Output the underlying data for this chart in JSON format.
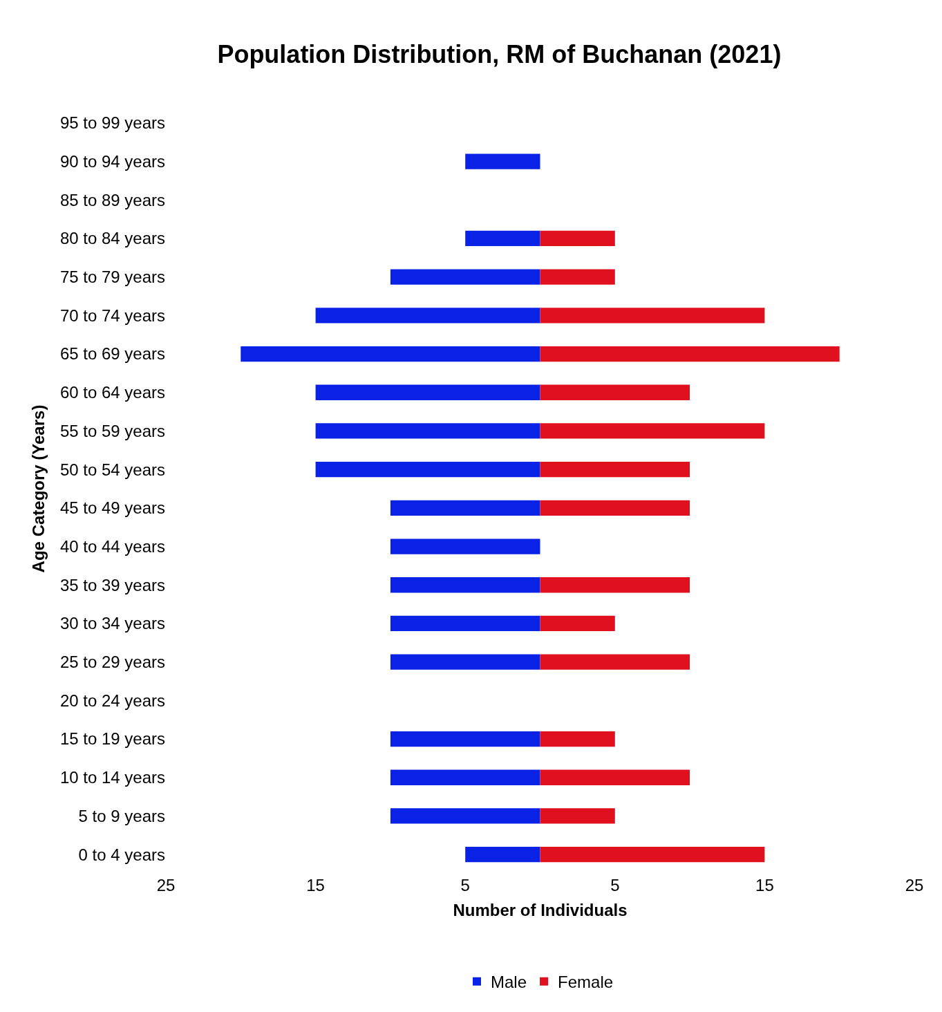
{
  "chart_data": {
    "type": "bar",
    "orientation": "horizontal",
    "title": "Population Distribution, RM of Buchanan (2021)",
    "xlabel": "Number of Individuals",
    "ylabel": "Age Category (Years)",
    "categories": [
      "95 to 99 years",
      "90 to 94 years",
      "85 to 89 years",
      "80 to 84 years",
      "75 to 79 years",
      "70 to 74 years",
      "65 to 69 years",
      "60 to 64 years",
      "55 to 59 years",
      "50 to 54 years",
      "45 to 49 years",
      "40 to 44 years",
      "35 to 39 years",
      "30 to 34 years",
      "25 to 29 years",
      "20 to 24 years",
      "15 to 19 years",
      "10 to 14 years",
      "5 to 9 years",
      "0 to 4 years"
    ],
    "series": [
      {
        "name": "Male",
        "color": "#0a22e6",
        "values": [
          0,
          -5,
          0,
          -5,
          -10,
          -15,
          -20,
          -15,
          -15,
          -15,
          -10,
          -10,
          -10,
          -10,
          -10,
          0,
          -10,
          -10,
          -10,
          -5
        ]
      },
      {
        "name": "Female",
        "color": "#e0101e",
        "values": [
          0,
          0,
          0,
          5,
          5,
          15,
          20,
          10,
          15,
          10,
          10,
          0,
          10,
          5,
          10,
          0,
          5,
          10,
          5,
          15
        ]
      }
    ],
    "stacked": true,
    "xlim": [
      -25,
      25
    ],
    "xticks": [
      {
        "value": -25,
        "label": "25"
      },
      {
        "value": -15,
        "label": "15"
      },
      {
        "value": -5,
        "label": "5"
      },
      5,
      15,
      25
    ],
    "legend": "bottom"
  }
}
